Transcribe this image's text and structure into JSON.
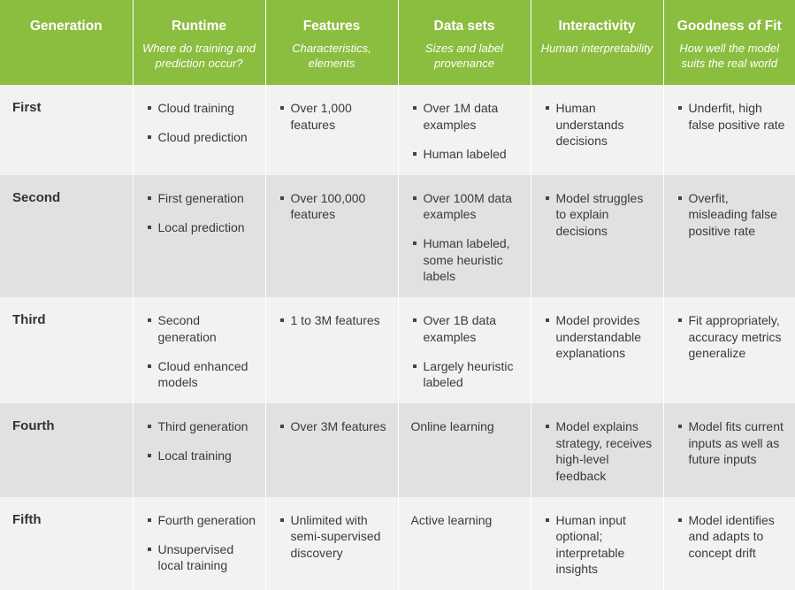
{
  "header": {
    "generation": "Generation",
    "runtime": {
      "title": "Runtime",
      "subtitle": "Where do training and prediction occur?"
    },
    "features": {
      "title": "Features",
      "subtitle": "Characteristics, elements"
    },
    "data_sets": {
      "title": "Data sets",
      "subtitle": "Sizes and label provenance"
    },
    "interactivity": {
      "title": "Interactivity",
      "subtitle": "Human interpretability"
    },
    "goodness_of_fit": {
      "title": "Goodness of Fit",
      "subtitle": "How well the model suits the real world"
    }
  },
  "rows": [
    {
      "generation": "First",
      "runtime": [
        "Cloud training",
        "Cloud prediction"
      ],
      "features": [
        "Over 1,000 features"
      ],
      "data_sets": [
        "Over 1M data examples",
        "Human labeled"
      ],
      "interactivity": [
        "Human understands decisions"
      ],
      "goodness_of_fit": [
        "Underfit, high false positive rate"
      ]
    },
    {
      "generation": "Second",
      "runtime": [
        "First generation",
        "Local prediction"
      ],
      "features": [
        "Over 100,000 features"
      ],
      "data_sets": [
        "Over 100M data examples",
        "Human labeled, some heuristic labels"
      ],
      "interactivity": [
        "Model struggles to explain decisions"
      ],
      "goodness_of_fit": [
        "Overfit, misleading false positive rate"
      ]
    },
    {
      "generation": "Third",
      "runtime": [
        "Second generation",
        "Cloud enhanced models"
      ],
      "features": [
        "1 to 3M features"
      ],
      "data_sets": [
        "Over 1B data examples",
        "Largely heuristic labeled"
      ],
      "interactivity": [
        "Model provides understandable explanations"
      ],
      "goodness_of_fit": [
        "Fit appropriately, accuracy metrics generalize"
      ]
    },
    {
      "generation": "Fourth",
      "runtime": [
        "Third generation",
        "Local training"
      ],
      "features": [
        "Over 3M features"
      ],
      "data_sets_plain": "Online learning",
      "interactivity": [
        "Model explains strategy, receives high-level feedback"
      ],
      "goodness_of_fit": [
        "Model fits current inputs as well as future inputs"
      ]
    },
    {
      "generation": "Fifth",
      "runtime": [
        "Fourth generation",
        "Unsupervised local training"
      ],
      "features": [
        "Unlimited with semi-supervised discovery"
      ],
      "data_sets_plain": "Active learning",
      "interactivity": [
        "Human input optional; interpretable insights"
      ],
      "goodness_of_fit": [
        "Model identifies and adapts to concept drift"
      ]
    }
  ],
  "colors": {
    "header_bg": "#8bbd3f",
    "row_light": "#f2f2f2",
    "row_dark": "#e1e1e1"
  }
}
